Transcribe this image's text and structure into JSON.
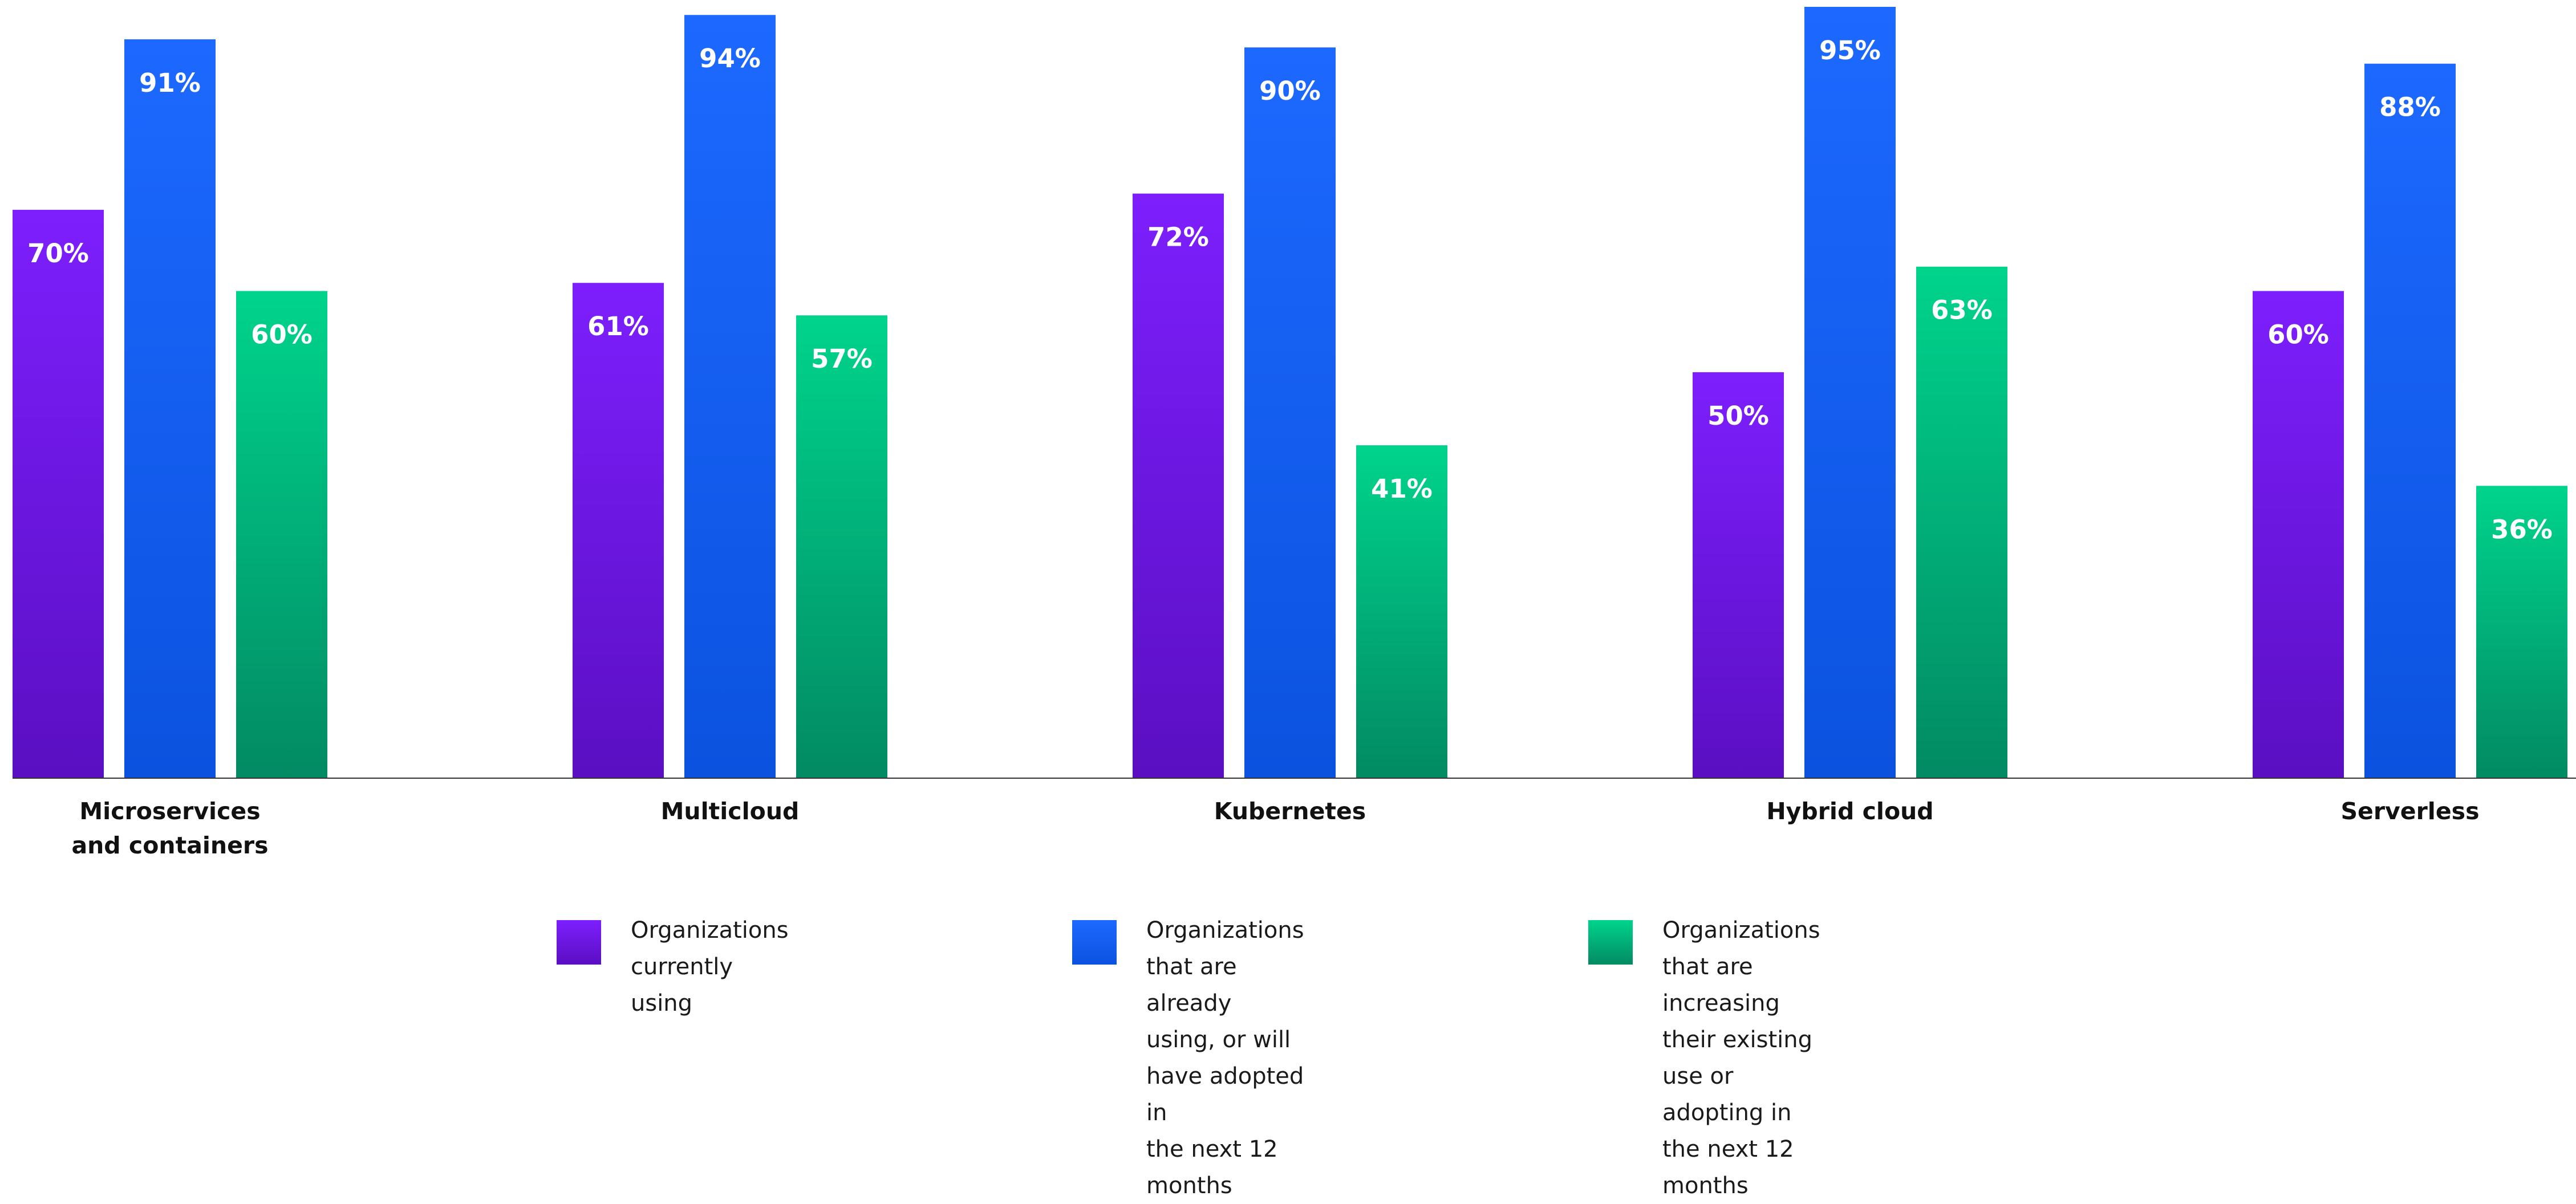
{
  "chart_data": {
    "type": "bar",
    "categories": [
      "Microservices\nand containers",
      "Multicloud",
      "Kubernetes",
      "Hybrid cloud",
      "Serverless"
    ],
    "series": [
      {
        "name": "Organizations currently using",
        "values": [
          70,
          61,
          72,
          50,
          60
        ],
        "labels": [
          "70%",
          "61%",
          "72%",
          "50%",
          "60%"
        ],
        "color_top": "#7d1ffd",
        "color_bottom": "#5a0fc2"
      },
      {
        "name": "Organizations that are already using, or will have adopted in the next 12 months",
        "values": [
          91,
          94,
          90,
          95,
          88
        ],
        "labels": [
          "91%",
          "94%",
          "90%",
          "95%",
          "88%"
        ],
        "color_top": "#1d69ff",
        "color_bottom": "#0b52df"
      },
      {
        "name": "Organizations that are increasing their existing use or adopting in the next 12 months",
        "values": [
          60,
          57,
          41,
          63,
          36
        ],
        "labels": [
          "60%",
          "57%",
          "41%",
          "63%",
          "36%"
        ],
        "color_top": "#00d48c",
        "color_bottom": "#028a63"
      }
    ],
    "ylim": [
      0,
      95
    ],
    "grid": false,
    "legend_position": "bottom"
  },
  "legend": {
    "items": [
      {
        "label": "Organizations currently using",
        "color": "#6b13e8"
      },
      {
        "label": "Organizations that are already\nusing, or will have adopted in\nthe next 12 months",
        "color": "#155ff5"
      },
      {
        "label": "Organizations that are increasing\ntheir existing use or adopting in\nthe next 12 months",
        "color": "#00c285"
      }
    ]
  }
}
